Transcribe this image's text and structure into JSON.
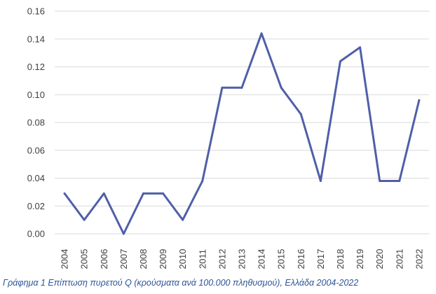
{
  "caption": "Γράφημα 1 Επίπτωση πυρετού Q (κρούσματα ανά 100.000 πληθυσμού), Ελλάδα 2004-2022",
  "chart_data": {
    "type": "line",
    "x": [
      "2004",
      "2005",
      "2006",
      "2007",
      "2008",
      "2009",
      "2010",
      "2011",
      "2012",
      "2013",
      "2014",
      "2015",
      "2016",
      "2017",
      "2018",
      "2019",
      "2020",
      "2021",
      "2022"
    ],
    "series": [
      {
        "values": [
          0.029,
          0.01,
          0.029,
          0.0,
          0.029,
          0.029,
          0.01,
          0.038,
          0.105,
          0.105,
          0.144,
          0.105,
          0.086,
          0.038,
          0.124,
          0.134,
          0.038,
          0.038,
          0.096
        ]
      }
    ],
    "yticks": [
      "0.00",
      "0.02",
      "0.04",
      "0.06",
      "0.08",
      "0.10",
      "0.12",
      "0.14",
      "0.16"
    ],
    "ylim": [
      0,
      0.16
    ],
    "grid": true,
    "line_color": "#4F5FA8",
    "grid_color": "#D9D9D9"
  }
}
